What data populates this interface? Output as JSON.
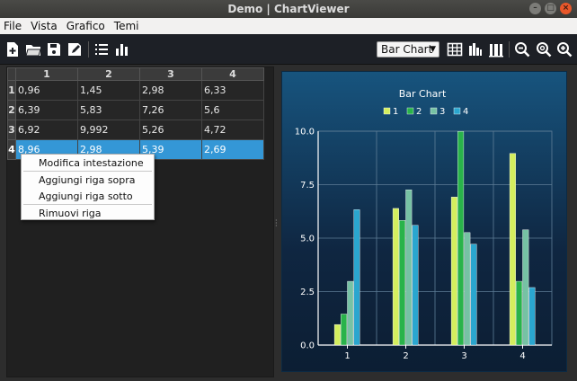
{
  "window": {
    "title": "Demo | ChartViewer"
  },
  "menu": [
    "File",
    "Vista",
    "Grafico",
    "Temi"
  ],
  "toolbar": {
    "chart_type": "Bar Chart",
    "icons": [
      "new-file-icon",
      "open-folder-icon",
      "save-icon",
      "edit-icon",
      "list-icon",
      "bar-data-icon",
      "table-icon",
      "bar-chart-icon",
      "bar-chart-alt-icon",
      "zoom-out-icon",
      "zoom-reset-icon",
      "zoom-in-icon"
    ]
  },
  "table": {
    "columns": [
      "1",
      "2",
      "3",
      "4"
    ],
    "rows": [
      {
        "header": "1",
        "cells": [
          "0,96",
          "1,45",
          "2,98",
          "6,33"
        ]
      },
      {
        "header": "2",
        "cells": [
          "6,39",
          "5,83",
          "7,26",
          "5,6"
        ]
      },
      {
        "header": "3",
        "cells": [
          "6,92",
          "9,992",
          "5,26",
          "4,72"
        ]
      },
      {
        "header": "4",
        "cells": [
          "8,96",
          "2,98",
          "5,39",
          "2,69"
        ]
      }
    ],
    "selected_row": 4
  },
  "context_menu": {
    "items": [
      "Modifica intestazione",
      "Aggiungi riga sopra",
      "Aggiungi riga sotto",
      "Rimuovi riga"
    ]
  },
  "colors": {
    "accent": "#3497d6",
    "series": [
      "#d4ee5e",
      "#29b34a",
      "#76c2a4",
      "#2aa6cf"
    ]
  },
  "chart_data": {
    "type": "bar",
    "title": "Bar Chart",
    "categories": [
      "1",
      "2",
      "3",
      "4"
    ],
    "series": [
      {
        "name": "1",
        "values": [
          0.96,
          6.39,
          6.92,
          8.96
        ]
      },
      {
        "name": "2",
        "values": [
          1.45,
          5.83,
          9.992,
          2.98
        ]
      },
      {
        "name": "3",
        "values": [
          2.98,
          7.26,
          5.26,
          5.39
        ]
      },
      {
        "name": "4",
        "values": [
          6.33,
          5.6,
          4.72,
          2.69
        ]
      }
    ],
    "yticks": [
      "0.0",
      "2.5",
      "5.0",
      "7.5",
      "10.0"
    ],
    "ylim": [
      0,
      10
    ],
    "grid": true,
    "legend": "top"
  }
}
